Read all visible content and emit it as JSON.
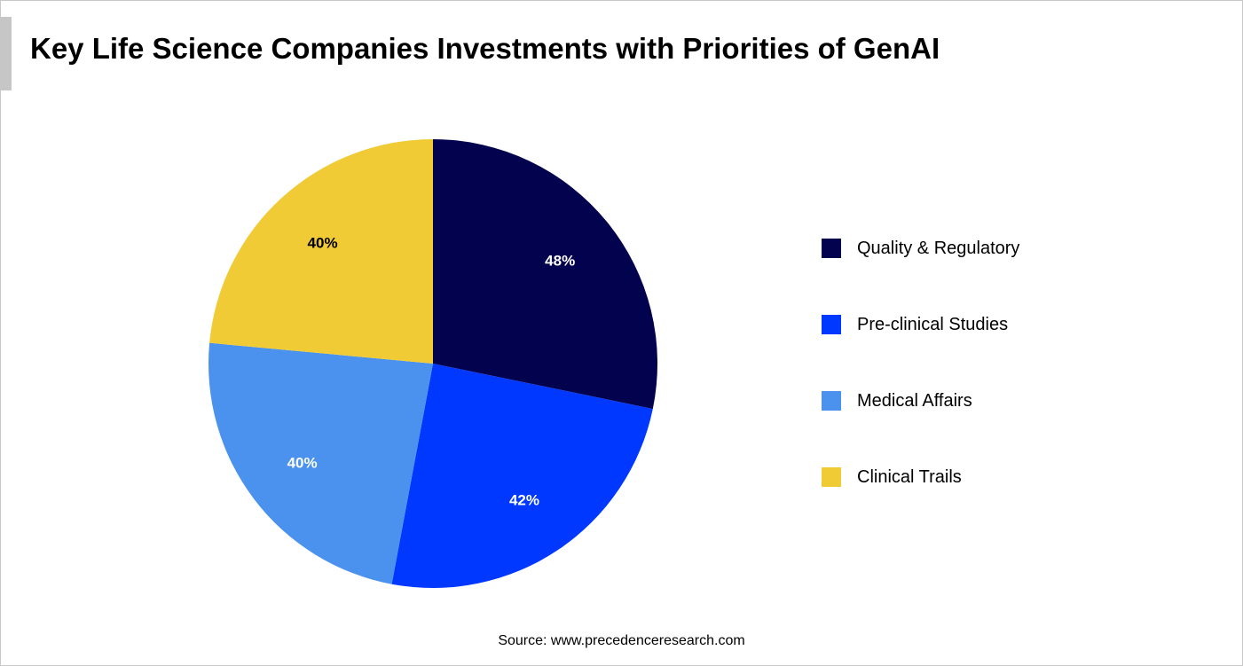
{
  "title": "Key Life Science Companies Investments with Priorities of GenAI",
  "source": "Source: www.precedenceresearch.com",
  "chart_data": {
    "type": "pie",
    "title": "Key Life Science Companies Investments with Priorities of GenAI",
    "categories": [
      "Quality & Regulatory",
      "Pre-clinical Studies",
      "Medical Affairs",
      "Clinical Trails"
    ],
    "values": [
      48,
      42,
      40,
      40
    ],
    "labels": [
      "48%",
      "42%",
      "40%",
      "40%"
    ],
    "colors": [
      "#02024f",
      "#0038ff",
      "#4a92ee",
      "#f0cb35"
    ],
    "label_colors": [
      "#ffffff",
      "#ffffff",
      "#ffffff",
      "#000000"
    ],
    "start": "12 o'clock, clockwise",
    "legend_position": "right"
  }
}
